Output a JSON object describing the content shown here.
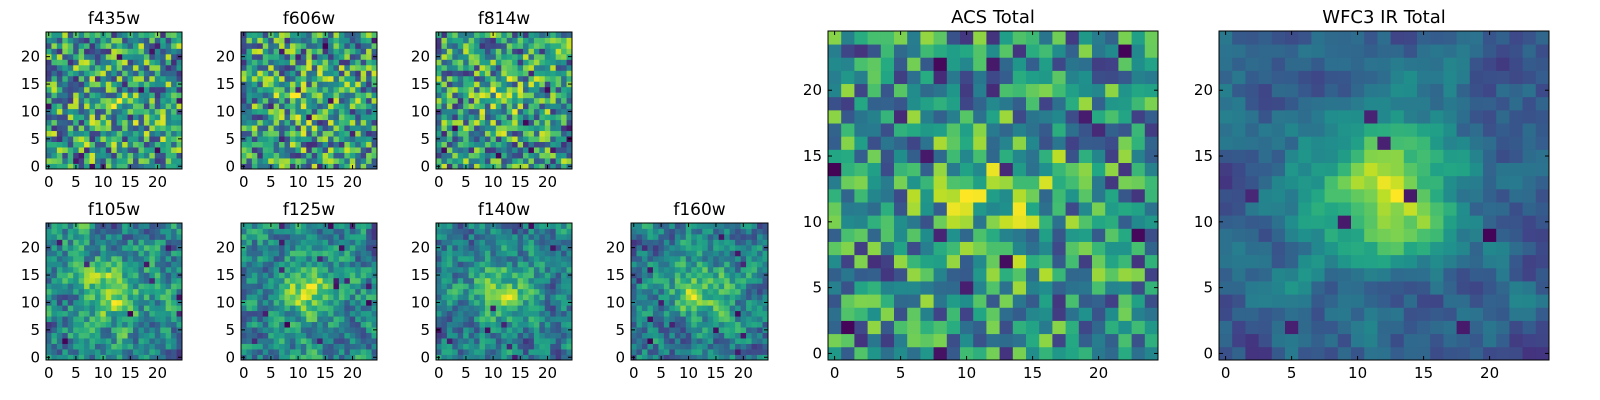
{
  "figure": {
    "description_colormap": "viridis",
    "colors": {
      "dark": "#440154",
      "mid": "#21918c",
      "light": "#fde725",
      "axes_frame": "#000000",
      "background": "#ffffff"
    }
  },
  "chart_data": [
    {
      "type": "heatmap",
      "title": "f435w",
      "grid_size": [
        25,
        25
      ],
      "origin": "lower",
      "xticks": [
        0,
        5,
        10,
        15,
        20
      ],
      "yticks": [
        0,
        5,
        10,
        15,
        20
      ],
      "xlim": [
        -0.5,
        24.5
      ],
      "ylim": [
        -0.5,
        24.5
      ],
      "seed": 11,
      "smooth": 0,
      "center_peak": 0.1,
      "noise": 1.0
    },
    {
      "type": "heatmap",
      "title": "f606w",
      "grid_size": [
        25,
        25
      ],
      "origin": "lower",
      "xticks": [
        0,
        5,
        10,
        15,
        20
      ],
      "yticks": [
        0,
        5,
        10,
        15,
        20
      ],
      "xlim": [
        -0.5,
        24.5
      ],
      "ylim": [
        -0.5,
        24.5
      ],
      "seed": 23,
      "smooth": 0,
      "center_peak": 0.15,
      "noise": 1.0
    },
    {
      "type": "heatmap",
      "title": "f814w",
      "grid_size": [
        25,
        25
      ],
      "origin": "lower",
      "xticks": [
        0,
        5,
        10,
        15,
        20
      ],
      "yticks": [
        0,
        5,
        10,
        15,
        20
      ],
      "xlim": [
        -0.5,
        24.5
      ],
      "ylim": [
        -0.5,
        24.5
      ],
      "seed": 37,
      "smooth": 0,
      "center_peak": 0.15,
      "noise": 1.0
    },
    {
      "type": "heatmap",
      "title": "f105w",
      "grid_size": [
        25,
        25
      ],
      "origin": "lower",
      "xticks": [
        0,
        5,
        10,
        15,
        20
      ],
      "yticks": [
        0,
        5,
        10,
        15,
        20
      ],
      "xlim": [
        -0.5,
        24.5
      ],
      "ylim": [
        -0.5,
        24.5
      ],
      "seed": 41,
      "smooth": 1,
      "center_peak": 0.35,
      "noise": 0.8
    },
    {
      "type": "heatmap",
      "title": "f125w",
      "grid_size": [
        25,
        25
      ],
      "origin": "lower",
      "xticks": [
        0,
        5,
        10,
        15,
        20
      ],
      "yticks": [
        0,
        5,
        10,
        15,
        20
      ],
      "xlim": [
        -0.5,
        24.5
      ],
      "ylim": [
        -0.5,
        24.5
      ],
      "seed": 53,
      "smooth": 1,
      "center_peak": 0.35,
      "noise": 0.8
    },
    {
      "type": "heatmap",
      "title": "f140w",
      "grid_size": [
        25,
        25
      ],
      "origin": "lower",
      "xticks": [
        0,
        5,
        10,
        15,
        20
      ],
      "yticks": [
        0,
        5,
        10,
        15,
        20
      ],
      "xlim": [
        -0.5,
        24.5
      ],
      "ylim": [
        -0.5,
        24.5
      ],
      "seed": 67,
      "smooth": 1,
      "center_peak": 0.35,
      "noise": 0.8
    },
    {
      "type": "heatmap",
      "title": "f160w",
      "grid_size": [
        25,
        25
      ],
      "origin": "lower",
      "xticks": [
        0,
        5,
        10,
        15,
        20
      ],
      "yticks": [
        0,
        5,
        10,
        15,
        20
      ],
      "xlim": [
        -0.5,
        24.5
      ],
      "ylim": [
        -0.5,
        24.5
      ],
      "seed": 79,
      "smooth": 1,
      "center_peak": 0.4,
      "noise": 0.8
    },
    {
      "type": "heatmap",
      "title": "ACS Total",
      "grid_size": [
        25,
        25
      ],
      "origin": "lower",
      "xticks": [
        0,
        5,
        10,
        15,
        20
      ],
      "yticks": [
        0,
        5,
        10,
        15,
        20
      ],
      "xlim": [
        -0.5,
        24.5
      ],
      "ylim": [
        -0.5,
        24.5
      ],
      "seed": 97,
      "smooth": 0,
      "center_peak": 0.3,
      "noise": 0.9
    },
    {
      "type": "heatmap",
      "title": "WFC3 IR Total",
      "grid_size": [
        25,
        25
      ],
      "origin": "lower",
      "xticks": [
        0,
        5,
        10,
        15,
        20
      ],
      "yticks": [
        0,
        5,
        10,
        15,
        20
      ],
      "xlim": [
        -0.5,
        24.5
      ],
      "ylim": [
        -0.5,
        24.5
      ],
      "seed": 131,
      "smooth": 2,
      "center_peak": 0.6,
      "noise": 0.6
    }
  ]
}
